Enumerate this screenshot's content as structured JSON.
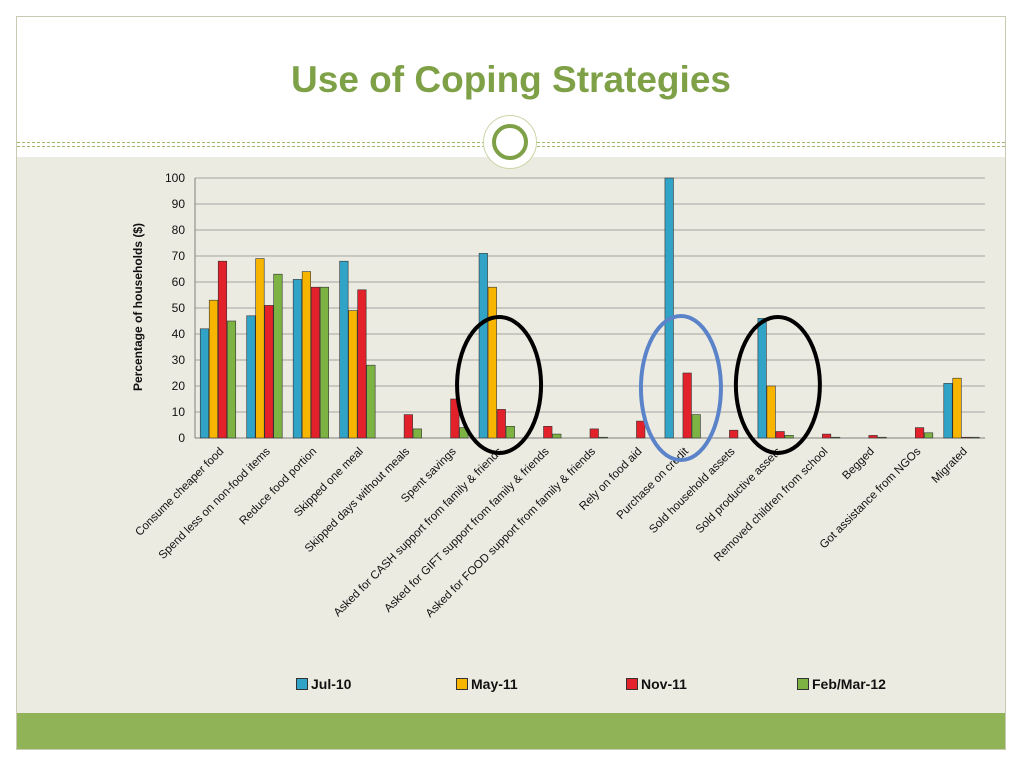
{
  "slide": {
    "title": "Use of Coping Strategies"
  },
  "colors": {
    "title": "#7ea046",
    "background": "#ecebe2",
    "footer": "#8fb356",
    "annotation_black": "#000000",
    "annotation_blue": "#5b83c9"
  },
  "chart_data": {
    "type": "bar",
    "title": "",
    "xlabel": "",
    "ylabel": "Percentage of households ($)",
    "ylim": [
      0,
      100
    ],
    "yticks": [
      0,
      10,
      20,
      30,
      40,
      50,
      60,
      70,
      80,
      90,
      100
    ],
    "grid": true,
    "legend_position": "bottom",
    "categories": [
      "Consume cheaper food",
      "Spend less on non-food items",
      "Reduce food portion",
      "Skipped one meal",
      "Skipped days without meals",
      "Spent savings",
      "Asked for CASH support from family & friends",
      "Asked for GIFT support from family & friends",
      "Asked for FOOD support from family & friends",
      "Rely on food aid",
      "Purchase on credit",
      "Sold household assets",
      "Sold productive assets",
      "Removed children from school",
      "Begged",
      "Got assistance from NGOs",
      "Migrated"
    ],
    "series": [
      {
        "name": "Jul-10",
        "color": "#31a3c6",
        "values": [
          42,
          47,
          61,
          68,
          0,
          0,
          71,
          0,
          0,
          0,
          100,
          0,
          46,
          0,
          0,
          0,
          21
        ]
      },
      {
        "name": "May-11",
        "color": "#f7b500",
        "values": [
          53,
          69,
          64,
          49,
          0,
          0,
          58,
          0,
          0,
          0,
          0,
          0,
          20,
          0,
          0,
          0,
          23
        ]
      },
      {
        "name": "Nov-11",
        "color": "#e2212b",
        "values": [
          68,
          51,
          58,
          57,
          9,
          15,
          11,
          4.5,
          3.5,
          6.5,
          25,
          3,
          2.5,
          1.5,
          1,
          4,
          0.3
        ]
      },
      {
        "name": "Feb/Mar-12",
        "color": "#7cb342",
        "values": [
          45,
          63,
          58,
          28,
          3.5,
          4,
          4.5,
          1.5,
          0.3,
          0,
          9,
          0,
          1,
          0.3,
          0.3,
          2,
          0.3
        ]
      }
    ],
    "annotations": [
      {
        "type": "ellipse",
        "color": "black",
        "highlights": "Asked for CASH support from family & friends"
      },
      {
        "type": "ellipse",
        "color": "blue",
        "highlights": "Purchase on credit"
      },
      {
        "type": "ellipse",
        "color": "black",
        "highlights": "Sold productive assets"
      }
    ]
  }
}
